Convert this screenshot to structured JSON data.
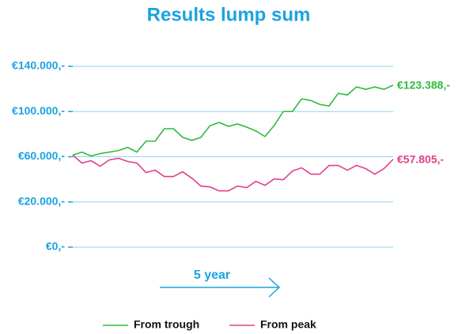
{
  "chart_data": {
    "type": "line",
    "title": "Results lump sum",
    "annotation": "5 year",
    "ylim": [
      0,
      140000
    ],
    "yticks": [
      {
        "value": 0,
        "label": "€0,-"
      },
      {
        "value": 20000,
        "label": "€20.000,-"
      },
      {
        "value": 60000,
        "label": "€60.000,-"
      },
      {
        "value": 100000,
        "label": "€100.000,-"
      },
      {
        "value": 140000,
        "label": "€140.000,-"
      }
    ],
    "grid": true,
    "legend": "bottom",
    "series": [
      {
        "name": "From trough",
        "color": "#2dbb3c",
        "values": [
          61400,
          64100,
          60700,
          62800,
          64100,
          65500,
          68300,
          64100,
          73800,
          73800,
          84800,
          84800,
          77200,
          74500,
          77200,
          87600,
          90300,
          86900,
          89000,
          86200,
          82800,
          77900,
          87600,
          100000,
          100000,
          111200,
          109800,
          106300,
          104900,
          116100,
          114700,
          121800,
          119600,
          121800,
          119600,
          123388
        ],
        "value_labels": [
          null,
          null,
          null,
          null,
          null,
          null,
          null,
          null,
          null,
          null,
          null,
          null,
          null,
          null,
          null,
          null,
          null,
          null,
          null,
          null,
          null,
          null,
          null,
          null,
          null,
          null,
          null,
          null,
          null,
          null,
          null,
          null,
          null,
          null,
          null,
          "€123.388,-"
        ]
      },
      {
        "name": "From peak",
        "color": "#e0408b",
        "values": [
          61400,
          54400,
          56500,
          51600,
          57200,
          58600,
          55800,
          54400,
          46000,
          48100,
          42500,
          42500,
          46700,
          41100,
          34000,
          33300,
          29800,
          29800,
          34000,
          32600,
          38200,
          34700,
          40400,
          39600,
          47400,
          50200,
          44600,
          44600,
          52300,
          52300,
          48100,
          52300,
          49500,
          44600,
          49500,
          57805
        ],
        "value_labels": [
          null,
          null,
          null,
          null,
          null,
          null,
          null,
          null,
          null,
          null,
          null,
          null,
          null,
          null,
          null,
          null,
          null,
          null,
          null,
          null,
          null,
          null,
          null,
          null,
          null,
          null,
          null,
          null,
          null,
          null,
          null,
          null,
          null,
          null,
          null,
          "€57.805,-"
        ]
      }
    ]
  }
}
